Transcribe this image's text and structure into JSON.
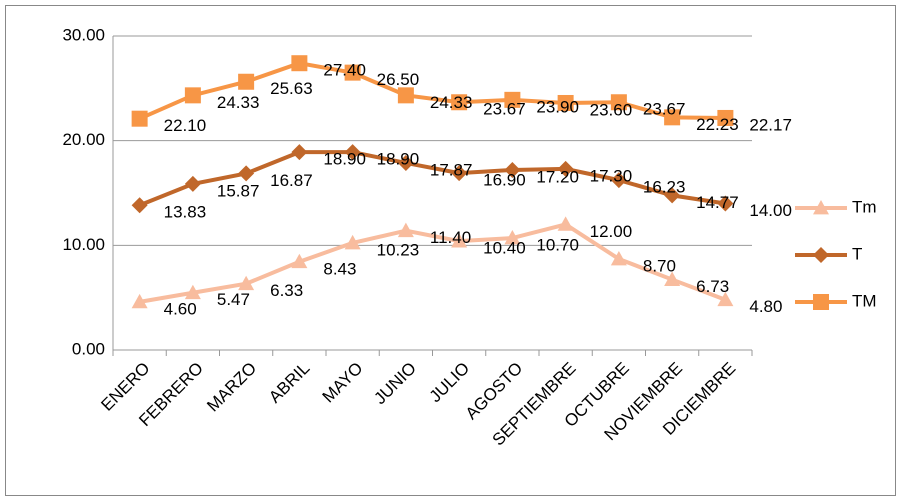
{
  "chart_data": {
    "type": "line",
    "categories": [
      "ENERO",
      "FEBRERO",
      "MARZO",
      "ABRIL",
      "MAYO",
      "JUNIO",
      "JULIO",
      "AGOSTO",
      "SEPTIEMBRE",
      "OCTUBRE",
      "NOVIEMBRE",
      "DICIEMBRE"
    ],
    "ylim": [
      0,
      30
    ],
    "yticks": [
      {
        "value": 0,
        "label": "0.00"
      },
      {
        "value": 10,
        "label": "10.00"
      },
      {
        "value": 20,
        "label": "20.00"
      },
      {
        "value": 30,
        "label": "30.00"
      }
    ],
    "grid": true,
    "legend": "right",
    "series": [
      {
        "name": "Tm",
        "color": "#f8bc9e",
        "marker": "triangle",
        "values": [
          4.6,
          5.47,
          6.33,
          8.43,
          10.23,
          11.4,
          10.4,
          10.7,
          12,
          8.7,
          6.73,
          4.8
        ],
        "value_labels": [
          "4.60",
          "5.47",
          "6.33",
          "8.43",
          "10.23",
          "11.40",
          "10.40",
          "10.70",
          "12.00",
          "8.70",
          "6.73",
          "4.80"
        ],
        "value_label_colors": [
          "#ff0000",
          "#000000",
          "#000000",
          "#000000",
          "#000000",
          "#000000",
          "#000000",
          "#000000",
          "#ff0000",
          "#000000",
          "#000000",
          "#000000"
        ]
      },
      {
        "name": "T",
        "color": "#c0672a",
        "marker": "diamond",
        "values": [
          13.83,
          15.87,
          16.87,
          18.9,
          18.9,
          17.87,
          16.9,
          17.2,
          17.3,
          16.23,
          14.77,
          14
        ],
        "value_labels": [
          "13.83",
          "15.87",
          "16.87",
          "18.90",
          "18.90",
          "17.87",
          "16.90",
          "17.20",
          "17.30",
          "16.23",
          "14.77",
          "14.00"
        ],
        "value_label_colors": [
          "#000000",
          "#000000",
          "#000000",
          "#ff0000",
          "#ff0000",
          "#000000",
          "#000000",
          "#000000",
          "#000000",
          "#000000",
          "#000000",
          "#ff0000"
        ]
      },
      {
        "name": "TM",
        "color": "#f79646",
        "marker": "square",
        "values": [
          22.1,
          24.33,
          25.63,
          27.4,
          26.5,
          24.33,
          23.67,
          23.9,
          23.6,
          23.67,
          22.23,
          22.17
        ],
        "value_labels": [
          "22.10",
          "24.33",
          "25.63",
          "27.40",
          "26.50",
          "24.33",
          "23.67",
          "23.90",
          "23.60",
          "23.67",
          "22.23",
          "22.17"
        ],
        "value_label_colors": [
          "#ff0000",
          "#000000",
          "#000000",
          "#ff0000",
          "#000000",
          "#000000",
          "#000000",
          "#000000",
          "#000000",
          "#000000",
          "#000000",
          "#000000"
        ]
      }
    ]
  }
}
